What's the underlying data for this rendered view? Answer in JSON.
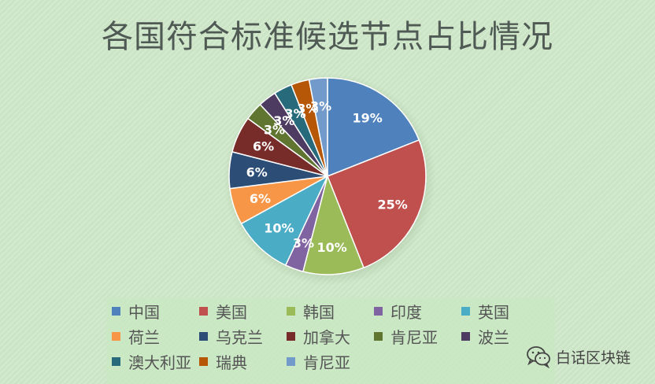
{
  "chart_data": {
    "type": "pie",
    "title": "各国符合标准候选节点占比情况",
    "categories": [
      "中国",
      "美国",
      "韩国",
      "印度",
      "英国",
      "荷兰",
      "乌克兰",
      "加拿大",
      "肯尼亚",
      "波兰",
      "澳大利亚",
      "瑞典",
      "肯尼亚"
    ],
    "values": [
      19,
      25,
      10,
      3,
      10,
      6,
      6,
      6,
      3,
      3,
      3,
      3,
      3
    ],
    "labels": [
      "19%",
      "25%",
      "10%",
      "3%",
      "10%",
      "6%",
      "6%",
      "6%",
      "3%",
      "3%",
      "3%",
      "3%",
      "3%"
    ],
    "colors": [
      "#4f81bd",
      "#c0504d",
      "#9bbb59",
      "#8064a2",
      "#4bacc6",
      "#f79646",
      "#2c4d75",
      "#772c2a",
      "#5f7530",
      "#4d3b62",
      "#276a7c",
      "#b65708",
      "#729aca"
    ],
    "legend_position": "bottom"
  },
  "watermark": {
    "text": "白话区块链",
    "icon": "wechat-icon"
  }
}
